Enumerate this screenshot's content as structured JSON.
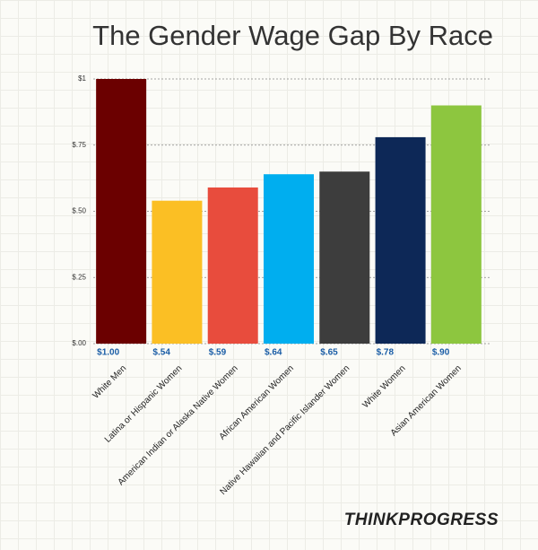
{
  "chart_data": {
    "type": "bar",
    "title": "The Gender Wage Gap By Race",
    "categories": [
      "White Men",
      "Latina or Hispanic Women",
      "American Indian or Alaska Native Women",
      "African American Women",
      "Native Hawaiian and Pacific Islander Women",
      "White Women",
      "Asian American Women"
    ],
    "values": [
      1.0,
      0.54,
      0.59,
      0.64,
      0.65,
      0.78,
      0.9
    ],
    "value_labels": [
      "$1.00",
      "$.54",
      "$.59",
      "$.64",
      "$.65",
      "$.78",
      "$.90"
    ],
    "colors": [
      "#6b0000",
      "#fbbf24",
      "#e84c3d",
      "#00aeef",
      "#3d3d3d",
      "#0d2857",
      "#8dc63f"
    ],
    "ylim": [
      0,
      1
    ],
    "yticks": [
      {
        "value": 0,
        "label": "$.00"
      },
      {
        "value": 0.25,
        "label": "$.25"
      },
      {
        "value": 0.5,
        "label": "$.50"
      },
      {
        "value": 0.75,
        "label": "$.75"
      },
      {
        "value": 1,
        "label": "$1"
      }
    ],
    "grid": true,
    "source": "THINKPROGRESS"
  }
}
